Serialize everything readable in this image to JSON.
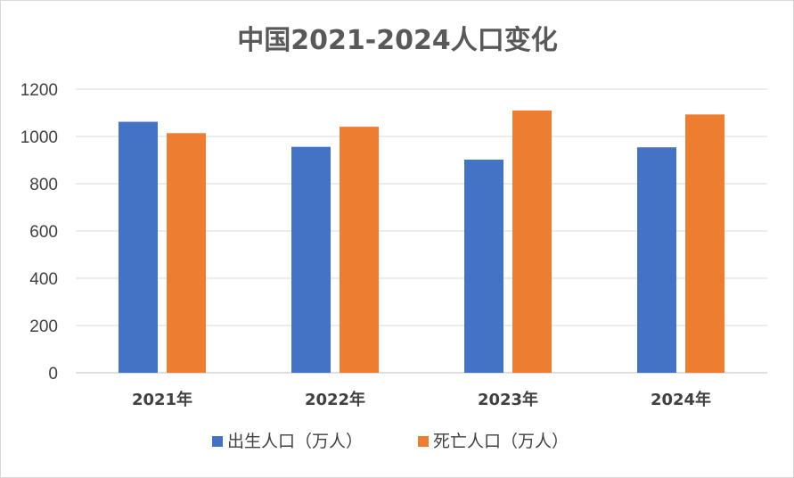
{
  "chart_data": {
    "type": "bar",
    "title": "中国2021-2024人口变化",
    "categories": [
      "2021年",
      "2022年",
      "2023年",
      "2024年"
    ],
    "series": [
      {
        "name": "出生人口（万人）",
        "color": "#4472C4",
        "values": [
          1062,
          956,
          902,
          954
        ]
      },
      {
        "name": "死亡人口（万人）",
        "color": "#ED7D31",
        "values": [
          1014,
          1041,
          1110,
          1093
        ]
      }
    ],
    "ylim": [
      0,
      1200
    ],
    "yticks": [
      "0",
      "200",
      "400",
      "600",
      "800",
      "1000",
      "1200"
    ],
    "grid": true,
    "legend": "bottom",
    "xlabel": "",
    "ylabel": ""
  }
}
